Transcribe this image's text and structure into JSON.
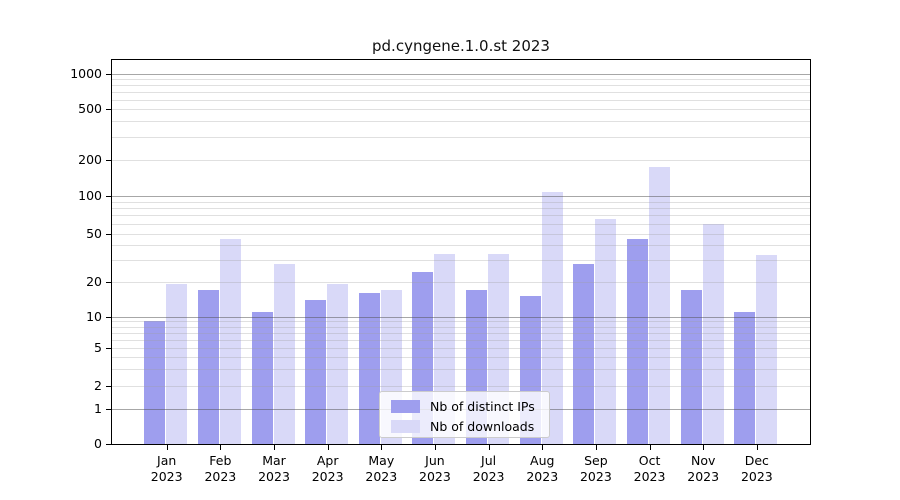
{
  "chart_data": {
    "type": "bar",
    "title": "pd.cyngene.1.0.st 2023",
    "categories": [
      "Jan",
      "Feb",
      "Mar",
      "Apr",
      "May",
      "Jun",
      "Jul",
      "Aug",
      "Sep",
      "Oct",
      "Nov",
      "Dec"
    ],
    "x_tick_year": "2023",
    "series": [
      {
        "name": "Nb of distinct IPs",
        "color": "#9e9eee",
        "values": [
          9,
          17,
          11,
          14,
          16,
          24,
          17,
          15,
          28,
          45,
          17,
          11
        ]
      },
      {
        "name": "Nb of downloads",
        "color": "#d9d9f8",
        "values": [
          19,
          45,
          28,
          19,
          17,
          34,
          34,
          107,
          65,
          175,
          60,
          33
        ]
      }
    ],
    "y_axis": {
      "scale": "log-like (log above 1, compressed toward 0)",
      "tick_values": [
        0,
        1,
        2,
        5,
        10,
        20,
        50,
        100,
        200,
        500,
        1000
      ],
      "range": [
        0,
        1000
      ],
      "major_grid_values": [
        1,
        10,
        100,
        1000
      ],
      "minor_grid_values": [
        2,
        3,
        4,
        5,
        6,
        7,
        8,
        9,
        20,
        30,
        40,
        50,
        60,
        70,
        80,
        90,
        200,
        300,
        400,
        500,
        600,
        700,
        800,
        900
      ]
    },
    "xlabel": "",
    "ylabel": "",
    "grid": "on",
    "legend_position": "lower center"
  }
}
